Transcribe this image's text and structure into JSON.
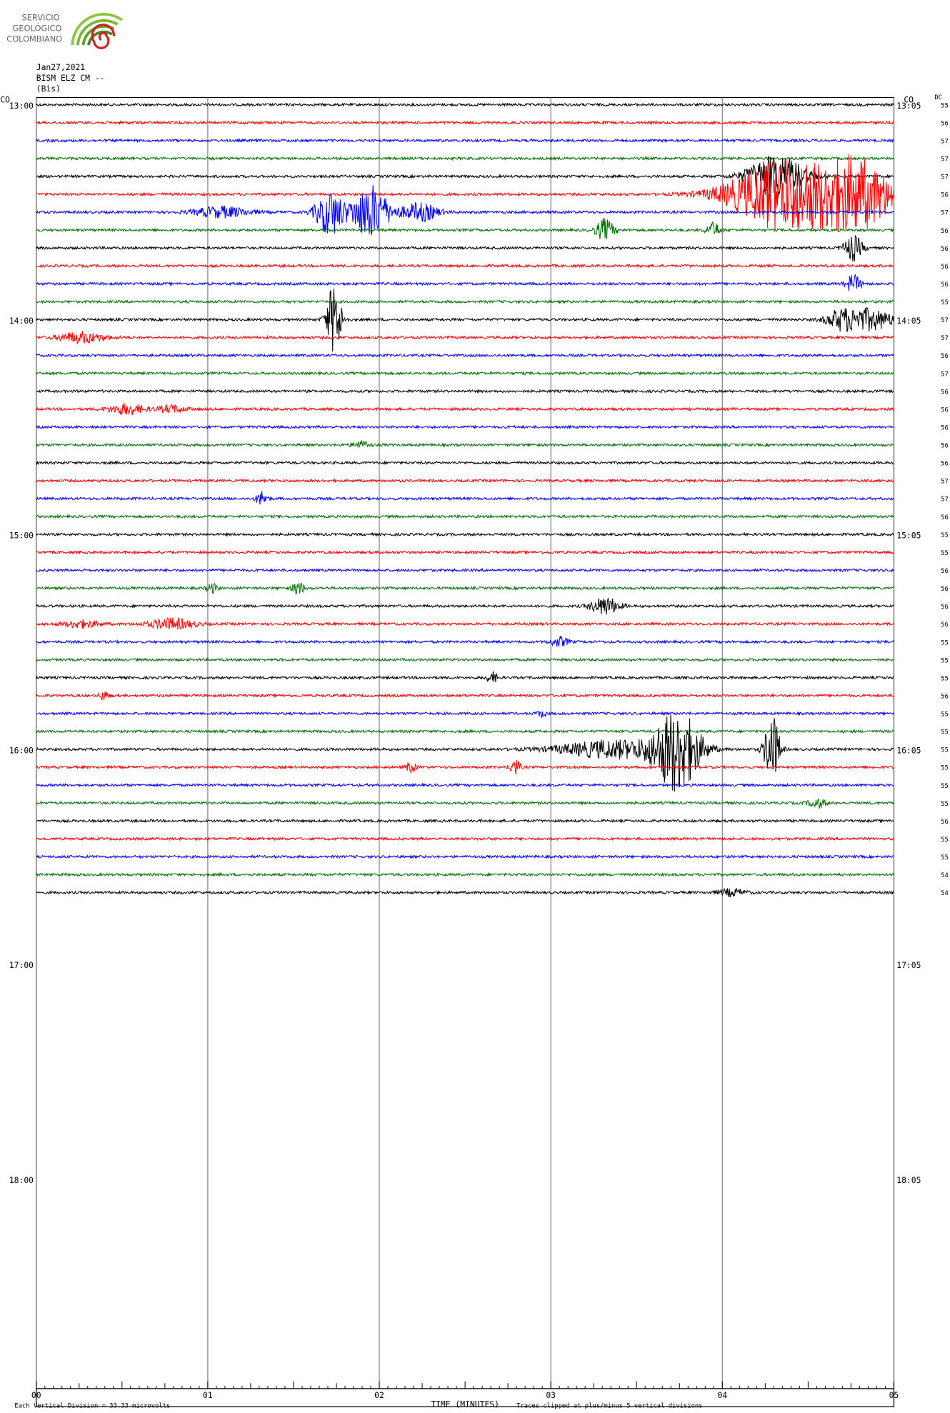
{
  "header": {
    "org": [
      "SERVICIO",
      "GEOLÓGICO",
      "COLOMBIANO"
    ],
    "date": "Jan27,2021",
    "station": "BISM ELZ CM --",
    "label": "(Bis)",
    "left_corner": "CO",
    "right_corner": "CO",
    "dc_header": "DC"
  },
  "left_times": [
    "13:00",
    "14:00",
    "15:00",
    "16:00",
    "17:00",
    "18:00"
  ],
  "right_times": [
    "13:05",
    "14:05",
    "15:05",
    "16:05",
    "17:05",
    "18:05"
  ],
  "dc": [
    "55",
    "56",
    "57",
    "57",
    "57",
    "56",
    "57",
    "56",
    "56",
    "56",
    "56",
    "55",
    "57",
    "57",
    "56",
    "57",
    "56",
    "56",
    "56",
    "56",
    "56",
    "57",
    "57",
    "56",
    "55",
    "55",
    "56",
    "56",
    "56",
    "56",
    "55",
    "55",
    "55",
    "56",
    "55",
    "55",
    "55",
    "55",
    "55",
    "55",
    "56",
    "55",
    "55",
    "54",
    "54"
  ],
  "x_ticks": [
    "00",
    "01",
    "02",
    "03",
    "04",
    "05"
  ],
  "x_title": "TIME (MINUTES)",
  "footer": {
    "division": "Each Vertical Division =   33.33 microvolts",
    "clip": "Traces clipped at plus/minus 5 vertical divisions"
  }
}
